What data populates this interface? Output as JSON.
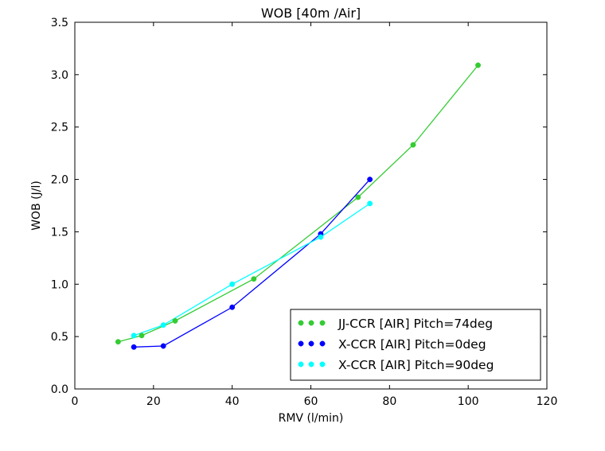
{
  "chart_data": {
    "type": "line",
    "title": "WOB [40m /Air]",
    "xlabel": "RMV (l/min)",
    "ylabel": "WOB (J/l)",
    "xlim": [
      0,
      120
    ],
    "ylim": [
      0,
      3.5
    ],
    "xticks": [
      0,
      20,
      40,
      60,
      80,
      100,
      120
    ],
    "xtick_labels": [
      "0",
      "20",
      "40",
      "60",
      "80",
      "100",
      "120"
    ],
    "yticks": [
      0,
      0.5,
      1.0,
      1.5,
      2.0,
      2.5,
      3.0,
      3.5
    ],
    "ytick_labels": [
      "0.0",
      "0.5",
      "1.0",
      "1.5",
      "2.0",
      "2.5",
      "3.0",
      "3.5"
    ],
    "grid": false,
    "legend_position": "bottom-right",
    "series": [
      {
        "name": "JJ-CCR [AIR] Pitch=74deg",
        "color": "#33cc33",
        "marker": "circle",
        "x": [
          11,
          17,
          25.5,
          45.5,
          72,
          86,
          102.5
        ],
        "y": [
          0.45,
          0.51,
          0.65,
          1.05,
          1.83,
          2.33,
          3.09
        ]
      },
      {
        "name": "X-CCR [AIR] Pitch=0deg",
        "color": "#0000ff",
        "marker": "circle",
        "x": [
          15,
          22.5,
          40,
          62.5,
          75
        ],
        "y": [
          0.4,
          0.41,
          0.78,
          1.48,
          2.0
        ]
      },
      {
        "name": "X-CCR [AIR] Pitch=90deg",
        "color": "#00ffff",
        "marker": "circle",
        "x": [
          15,
          22.5,
          40,
          62.5,
          75
        ],
        "y": [
          0.51,
          0.61,
          1.0,
          1.45,
          1.77
        ]
      }
    ]
  }
}
